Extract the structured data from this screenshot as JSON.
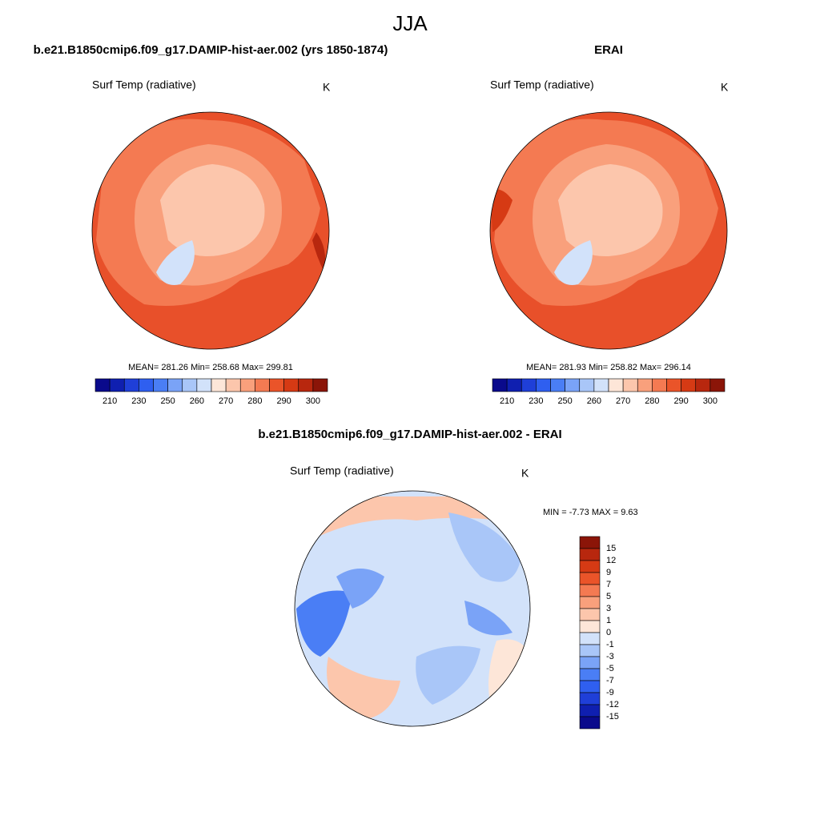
{
  "title": "JJA",
  "panels": [
    {
      "title": "b.e21.B1850cmip6.f09_g17.DAMIP-hist-aer.002 (yrs 1850-1874)",
      "variable": "Surf Temp (radiative)",
      "units": "K",
      "stats": "MEAN= 281.26  Min= 258.68  Max= 299.81",
      "colorbar": {
        "colors": [
          "#0a0a8c",
          "#0f1fb0",
          "#1f3fd8",
          "#2f5ff0",
          "#4a7ef5",
          "#7aa3f7",
          "#a9c6f8",
          "#d2e2fa",
          "#fde6d8",
          "#fcc6ac",
          "#f9a07c",
          "#f47a52",
          "#ea5429",
          "#d63a14",
          "#b8270e",
          "#8b1508"
        ],
        "labels": [
          "210",
          "230",
          "250",
          "260",
          "270",
          "280",
          "290",
          "300"
        ]
      }
    },
    {
      "title": "ERAI",
      "variable": "Surf Temp (radiative)",
      "units": "K",
      "stats": "MEAN= 281.93  Min= 258.82  Max= 296.14",
      "colorbar": {
        "colors": [
          "#0a0a8c",
          "#0f1fb0",
          "#1f3fd8",
          "#2f5ff0",
          "#4a7ef5",
          "#7aa3f7",
          "#a9c6f8",
          "#d2e2fa",
          "#fde6d8",
          "#fcc6ac",
          "#f9a07c",
          "#f47a52",
          "#ea5429",
          "#d63a14",
          "#b8270e",
          "#8b1508"
        ],
        "labels": [
          "210",
          "230",
          "250",
          "260",
          "270",
          "280",
          "290",
          "300"
        ]
      }
    }
  ],
  "difference": {
    "title": "b.e21.B1850cmip6.f09_g17.DAMIP-hist-aer.002 - ERAI",
    "variable": "Surf Temp (radiative)",
    "units": "K",
    "stats": "MIN =  -7.73 MAX =   9.63",
    "colorbar": {
      "colors": [
        "#8b1508",
        "#b8270e",
        "#d63a14",
        "#ea5429",
        "#f47a52",
        "#f9a07c",
        "#fcc6ac",
        "#fde6d8",
        "#d2e2fa",
        "#a9c6f8",
        "#7aa3f7",
        "#4a7ef5",
        "#2f5ff0",
        "#1f3fd8",
        "#0f1fb0",
        "#0a0a8c"
      ],
      "labels": [
        "15",
        "12",
        "9",
        "7",
        "5",
        "3",
        "1",
        "0",
        "-1",
        "-3",
        "-5",
        "-7",
        "-9",
        "-12",
        "-15"
      ]
    }
  }
}
